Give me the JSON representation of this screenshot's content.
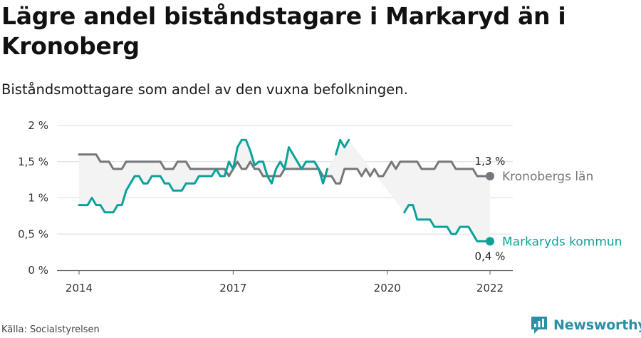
{
  "title": "Lägre andel biståndstagare i Markaryd än i Kronoberg",
  "subtitle": "Biståndsmottagare som andel av den vuxna befolkningen.",
  "source": "Källa: Socialstyrelsen",
  "brand": {
    "name": "Newsworthy",
    "icon": "newsworthy-logo-icon",
    "color": "#2d8fa7"
  },
  "chart_data": {
    "type": "line",
    "xlim": [
      2014.0,
      2022.0
    ],
    "ylim": [
      0,
      2
    ],
    "y_ticks": [
      {
        "value": 0,
        "label": "0 %"
      },
      {
        "value": 0.5,
        "label": "0,5 %"
      },
      {
        "value": 1,
        "label": "1 %"
      },
      {
        "value": 1.5,
        "label": "1,5 %"
      },
      {
        "value": 2,
        "label": "2 %"
      }
    ],
    "x_ticks": [
      {
        "value": 2014,
        "label": "2014"
      },
      {
        "value": 2017,
        "label": "2017"
      },
      {
        "value": 2020,
        "label": "2020"
      },
      {
        "value": 2022,
        "label": "2022"
      }
    ],
    "grid": true,
    "band_between_series": true,
    "band_color": "#f3f3f3",
    "series": [
      {
        "name": "Kronobergs län",
        "color": "#77767b",
        "end_label": "1,3 %",
        "segments": [
          [
            [
              2014.0,
              1.6
            ],
            [
              2014.333,
              1.6
            ],
            [
              2014.417,
              1.5
            ],
            [
              2014.583,
              1.5
            ],
            [
              2014.667,
              1.4
            ],
            [
              2014.833,
              1.4
            ],
            [
              2014.917,
              1.5
            ],
            [
              2015.583,
              1.5
            ],
            [
              2015.667,
              1.4
            ],
            [
              2015.833,
              1.4
            ],
            [
              2015.917,
              1.5
            ],
            [
              2016.083,
              1.5
            ],
            [
              2016.167,
              1.4
            ],
            [
              2016.833,
              1.4
            ],
            [
              2016.917,
              1.3
            ],
            [
              2016.917,
              1.3
            ],
            [
              2017.083,
              1.5
            ],
            [
              2017.167,
              1.4
            ],
            [
              2017.25,
              1.4
            ],
            [
              2017.333,
              1.5
            ],
            [
              2017.417,
              1.4
            ],
            [
              2017.5,
              1.4
            ],
            [
              2017.583,
              1.3
            ],
            [
              2017.917,
              1.3
            ],
            [
              2018.0,
              1.4
            ],
            [
              2018.667,
              1.4
            ],
            [
              2018.75,
              1.3
            ],
            [
              2018.917,
              1.3
            ],
            [
              2019.0,
              1.2
            ],
            [
              2019.083,
              1.2
            ],
            [
              2019.167,
              1.4
            ],
            [
              2019.417,
              1.4
            ],
            [
              2019.5,
              1.3
            ],
            [
              2019.583,
              1.4
            ],
            [
              2019.667,
              1.3
            ],
            [
              2019.75,
              1.4
            ],
            [
              2019.833,
              1.3
            ],
            [
              2019.917,
              1.3
            ],
            [
              2020.083,
              1.5
            ],
            [
              2020.167,
              1.4
            ],
            [
              2020.25,
              1.5
            ],
            [
              2020.583,
              1.5
            ],
            [
              2020.667,
              1.4
            ],
            [
              2020.917,
              1.4
            ],
            [
              2021.0,
              1.5
            ],
            [
              2021.25,
              1.5
            ],
            [
              2021.333,
              1.4
            ],
            [
              2021.667,
              1.4
            ],
            [
              2021.75,
              1.3
            ],
            [
              2022.0,
              1.3
            ]
          ]
        ]
      },
      {
        "name": "Markaryds kommun",
        "color": "#0ca19a",
        "end_label": "0,4 %",
        "segments": [
          [
            [
              2014.0,
              0.9
            ],
            [
              2014.167,
              0.9
            ],
            [
              2014.25,
              1.0
            ],
            [
              2014.333,
              0.9
            ],
            [
              2014.417,
              0.9
            ],
            [
              2014.5,
              0.8
            ],
            [
              2014.667,
              0.8
            ],
            [
              2014.75,
              0.9
            ],
            [
              2014.833,
              0.9
            ],
            [
              2014.917,
              1.1
            ],
            [
              2015.083,
              1.3
            ],
            [
              2015.167,
              1.3
            ],
            [
              2015.25,
              1.2
            ],
            [
              2015.333,
              1.2
            ],
            [
              2015.417,
              1.3
            ],
            [
              2015.583,
              1.3
            ],
            [
              2015.667,
              1.2
            ],
            [
              2015.75,
              1.2
            ],
            [
              2015.833,
              1.1
            ],
            [
              2016.0,
              1.1
            ],
            [
              2016.083,
              1.2
            ],
            [
              2016.25,
              1.2
            ],
            [
              2016.333,
              1.3
            ],
            [
              2016.583,
              1.3
            ],
            [
              2016.667,
              1.4
            ],
            [
              2016.75,
              1.3
            ],
            [
              2016.833,
              1.3
            ],
            [
              2016.917,
              1.5
            ],
            [
              2017.0,
              1.4
            ],
            [
              2017.083,
              1.7
            ],
            [
              2017.167,
              1.8
            ],
            [
              2017.25,
              1.8
            ],
            [
              2017.333,
              1.65
            ],
            [
              2017.417,
              1.45
            ],
            [
              2017.5,
              1.5
            ],
            [
              2017.583,
              1.5
            ],
            [
              2017.667,
              1.3
            ],
            [
              2017.75,
              1.2
            ],
            [
              2017.833,
              1.4
            ],
            [
              2017.917,
              1.5
            ],
            [
              2018.0,
              1.4
            ],
            [
              2018.083,
              1.7
            ],
            [
              2018.167,
              1.6
            ],
            [
              2018.25,
              1.5
            ],
            [
              2018.333,
              1.4
            ],
            [
              2018.417,
              1.5
            ],
            [
              2018.583,
              1.5
            ],
            [
              2018.667,
              1.4
            ],
            [
              2018.75,
              1.2
            ],
            [
              2018.833,
              1.4
            ]
          ],
          [
            [
              2019.0,
              1.6
            ],
            [
              2019.083,
              1.8
            ],
            [
              2019.167,
              1.7
            ],
            [
              2019.25,
              1.8
            ]
          ],
          [
            [
              2020.333,
              0.8
            ],
            [
              2020.417,
              0.9
            ],
            [
              2020.5,
              0.9
            ],
            [
              2020.583,
              0.7
            ],
            [
              2020.833,
              0.7
            ],
            [
              2020.917,
              0.6
            ],
            [
              2021.083,
              0.6
            ],
            [
              2021.167,
              0.6
            ],
            [
              2021.25,
              0.5
            ],
            [
              2021.333,
              0.5
            ],
            [
              2021.417,
              0.6
            ],
            [
              2021.583,
              0.6
            ],
            [
              2021.667,
              0.5
            ],
            [
              2021.75,
              0.4
            ],
            [
              2022.0,
              0.4
            ]
          ]
        ]
      }
    ]
  }
}
